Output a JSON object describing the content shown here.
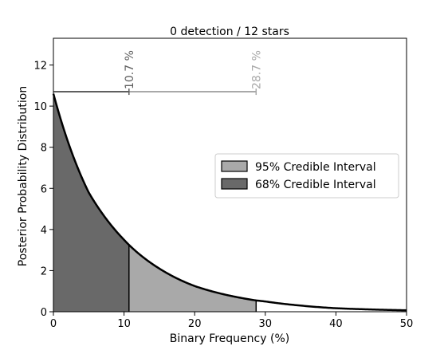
{
  "chart_data": {
    "type": "area",
    "title": "0 detection / 12 stars",
    "xlabel": "Binary Frequency (%)",
    "ylabel": "Posterior Probability Distribution",
    "xlim": [
      0,
      50
    ],
    "ylim": [
      0,
      13.3
    ],
    "x_ticks": [
      "0",
      "10",
      "20",
      "30",
      "40",
      "50"
    ],
    "y_ticks": [
      "0",
      "2",
      "4",
      "6",
      "8",
      "10",
      "12"
    ],
    "curve": {
      "x": [
        0,
        5,
        10,
        10.7,
        15,
        20,
        25,
        28.7,
        30,
        35,
        40,
        45,
        50
      ],
      "y": [
        10.6,
        5.8,
        3.5,
        3.25,
        2.1,
        1.25,
        0.78,
        0.55,
        0.5,
        0.3,
        0.17,
        0.11,
        0.07
      ]
    },
    "intervals": [
      {
        "name": "95% Credible Interval",
        "upper": 28.7,
        "color": "#a9a9a9"
      },
      {
        "name": "68% Credible Interval",
        "upper": 10.7,
        "color": "#696969"
      }
    ],
    "markers": [
      {
        "label": "10.7 %",
        "x": 10.7,
        "y": 10.7,
        "color": "#5f5f5f"
      },
      {
        "label": "28.7 %",
        "x": 28.7,
        "y": 10.7,
        "color": "#a9a9a9"
      }
    ],
    "legend_position": "center-right"
  }
}
